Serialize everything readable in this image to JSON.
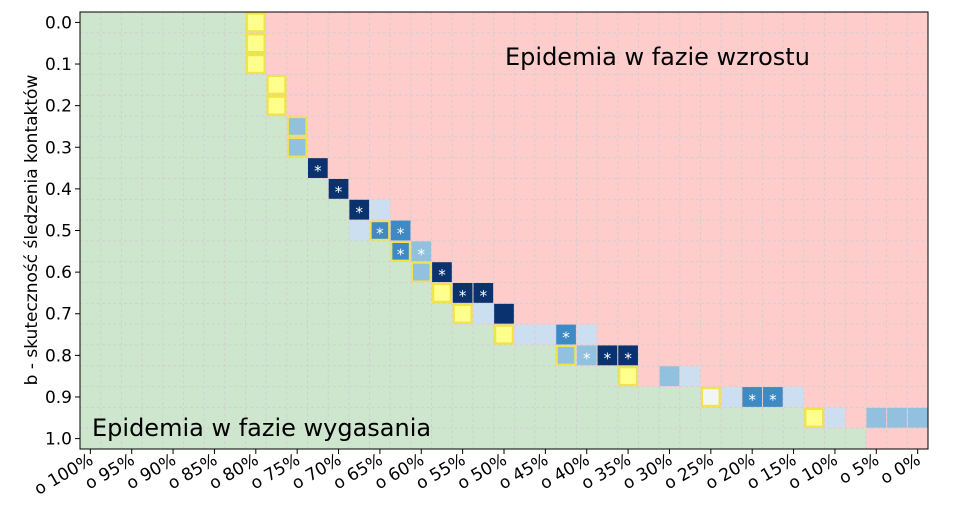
{
  "chart_data": {
    "type": "heatmap",
    "ylabel": "b - skuteczność śledzenia kontaktów",
    "x_ticks": [
      "o 100%",
      "o 95%",
      "o 90%",
      "o 85%",
      "o 80%",
      "o 75%",
      "o 70%",
      "o 65%",
      "o 60%",
      "o 55%",
      "o 50%",
      "o 45%",
      "o 40%",
      "o 35%",
      "o 30%",
      "o 25%",
      "o 20%",
      "o 15%",
      "o 10%",
      "o 5%",
      "o 0%"
    ],
    "y_ticks": [
      "0.0",
      "0.1",
      "0.2",
      "0.3",
      "0.4",
      "0.5",
      "0.6",
      "0.7",
      "0.8",
      "0.9",
      "1.0"
    ],
    "columns": [
      "o 100%",
      "o 97.5%",
      "o 95%",
      "o 92.5%",
      "o 90%",
      "o 87.5%",
      "o 85%",
      "o 82.5%",
      "o 80%",
      "o 77.5%",
      "o 75%",
      "o 72.5%",
      "o 70%",
      "o 67.5%",
      "o 65%",
      "o 62.5%",
      "o 60%",
      "o 57.5%",
      "o 55%",
      "o 52.5%",
      "o 50%",
      "o 47.5%",
      "o 45%",
      "o 42.5%",
      "o 40%",
      "o 37.5%",
      "o 35%",
      "o 32.5%",
      "o 30%",
      "o 27.5%",
      "o 25%",
      "o 22.5%",
      "o 20%",
      "o 17.5%",
      "o 15%",
      "o 12.5%",
      "o 10%",
      "o 7.5%",
      "o 5%",
      "o 2.5%",
      "o 0%"
    ],
    "rows": [
      "0.0",
      "0.05",
      "0.1",
      "0.15",
      "0.2",
      "0.25",
      "0.3",
      "0.35",
      "0.4",
      "0.45",
      "0.5",
      "0.55",
      "0.6",
      "0.65",
      "0.7",
      "0.75",
      "0.8",
      "0.85",
      "0.9",
      "0.95",
      "1.0"
    ],
    "regions": [
      {
        "name": "growth",
        "label": "Epidemia w fazie wzrostu",
        "color": "#ffcccc"
      },
      {
        "name": "decay",
        "label": "Epidemia w fazie wygasania",
        "color": "#cde6cd"
      }
    ],
    "boundary_col_per_row": [
      8,
      8,
      8,
      9,
      9,
      10,
      10,
      11,
      12,
      13,
      14,
      15,
      16,
      17,
      18,
      20,
      23,
      27,
      30,
      35,
      38
    ],
    "cells": [
      {
        "row": 0,
        "col": 8,
        "level": "yellow"
      },
      {
        "row": 1,
        "col": 8,
        "level": "yellow"
      },
      {
        "row": 2,
        "col": 8,
        "level": "yellow"
      },
      {
        "row": 3,
        "col": 9,
        "level": "yellow"
      },
      {
        "row": 4,
        "col": 9,
        "level": "yellow"
      },
      {
        "row": 5,
        "col": 10,
        "level": "light",
        "outline": true
      },
      {
        "row": 6,
        "col": 10,
        "level": "light",
        "outline": true
      },
      {
        "row": 7,
        "col": 11,
        "level": "dark",
        "marker": "*"
      },
      {
        "row": 8,
        "col": 12,
        "level": "dark",
        "marker": "*"
      },
      {
        "row": 9,
        "col": 13,
        "level": "dark",
        "marker": "*"
      },
      {
        "row": 9,
        "col": 14,
        "level": "pale"
      },
      {
        "row": 10,
        "col": 13,
        "level": "pale"
      },
      {
        "row": 10,
        "col": 14,
        "level": "mid",
        "marker": "*",
        "outline": true
      },
      {
        "row": 10,
        "col": 15,
        "level": "mid",
        "marker": "*"
      },
      {
        "row": 11,
        "col": 15,
        "level": "mid",
        "marker": "*",
        "outline": true
      },
      {
        "row": 11,
        "col": 16,
        "level": "light",
        "marker": "*"
      },
      {
        "row": 12,
        "col": 16,
        "level": "light",
        "outline": true
      },
      {
        "row": 12,
        "col": 17,
        "level": "dark",
        "marker": "*"
      },
      {
        "row": 13,
        "col": 17,
        "level": "yellow"
      },
      {
        "row": 13,
        "col": 18,
        "level": "dark",
        "marker": "*"
      },
      {
        "row": 13,
        "col": 19,
        "level": "dark",
        "marker": "*"
      },
      {
        "row": 14,
        "col": 18,
        "level": "yellow"
      },
      {
        "row": 14,
        "col": 19,
        "level": "pale"
      },
      {
        "row": 14,
        "col": 20,
        "level": "dark"
      },
      {
        "row": 15,
        "col": 20,
        "level": "yellow"
      },
      {
        "row": 15,
        "col": 21,
        "level": "pale"
      },
      {
        "row": 15,
        "col": 22,
        "level": "pale"
      },
      {
        "row": 15,
        "col": 23,
        "level": "mid",
        "marker": "*"
      },
      {
        "row": 15,
        "col": 24,
        "level": "pale"
      },
      {
        "row": 16,
        "col": 23,
        "level": "light",
        "outline": true
      },
      {
        "row": 16,
        "col": 24,
        "level": "light",
        "marker": "*"
      },
      {
        "row": 16,
        "col": 25,
        "level": "dark",
        "marker": "*"
      },
      {
        "row": 16,
        "col": 26,
        "level": "dark",
        "marker": "*"
      },
      {
        "row": 17,
        "col": 26,
        "level": "yellow"
      },
      {
        "row": 17,
        "col": 28,
        "level": "light"
      },
      {
        "row": 17,
        "col": 29,
        "level": "pale"
      },
      {
        "row": 18,
        "col": 30,
        "level": "yellow",
        "hollow": true
      },
      {
        "row": 18,
        "col": 31,
        "level": "pale"
      },
      {
        "row": 18,
        "col": 32,
        "level": "mid",
        "marker": "*"
      },
      {
        "row": 18,
        "col": 33,
        "level": "mid",
        "marker": "*"
      },
      {
        "row": 18,
        "col": 34,
        "level": "pale"
      },
      {
        "row": 19,
        "col": 35,
        "level": "yellow"
      },
      {
        "row": 19,
        "col": 36,
        "level": "pale"
      },
      {
        "row": 19,
        "col": 38,
        "level": "light"
      },
      {
        "row": 19,
        "col": 39,
        "level": "light"
      },
      {
        "row": 19,
        "col": 40,
        "level": "light"
      }
    ],
    "level_colors": {
      "yellow": "#ffff8c",
      "pale": "#ccdff0",
      "light": "#92c0df",
      "mid": "#3e8ac4",
      "dark": "#0a326e",
      "highlight": "#f0e44a"
    },
    "grid": true
  }
}
